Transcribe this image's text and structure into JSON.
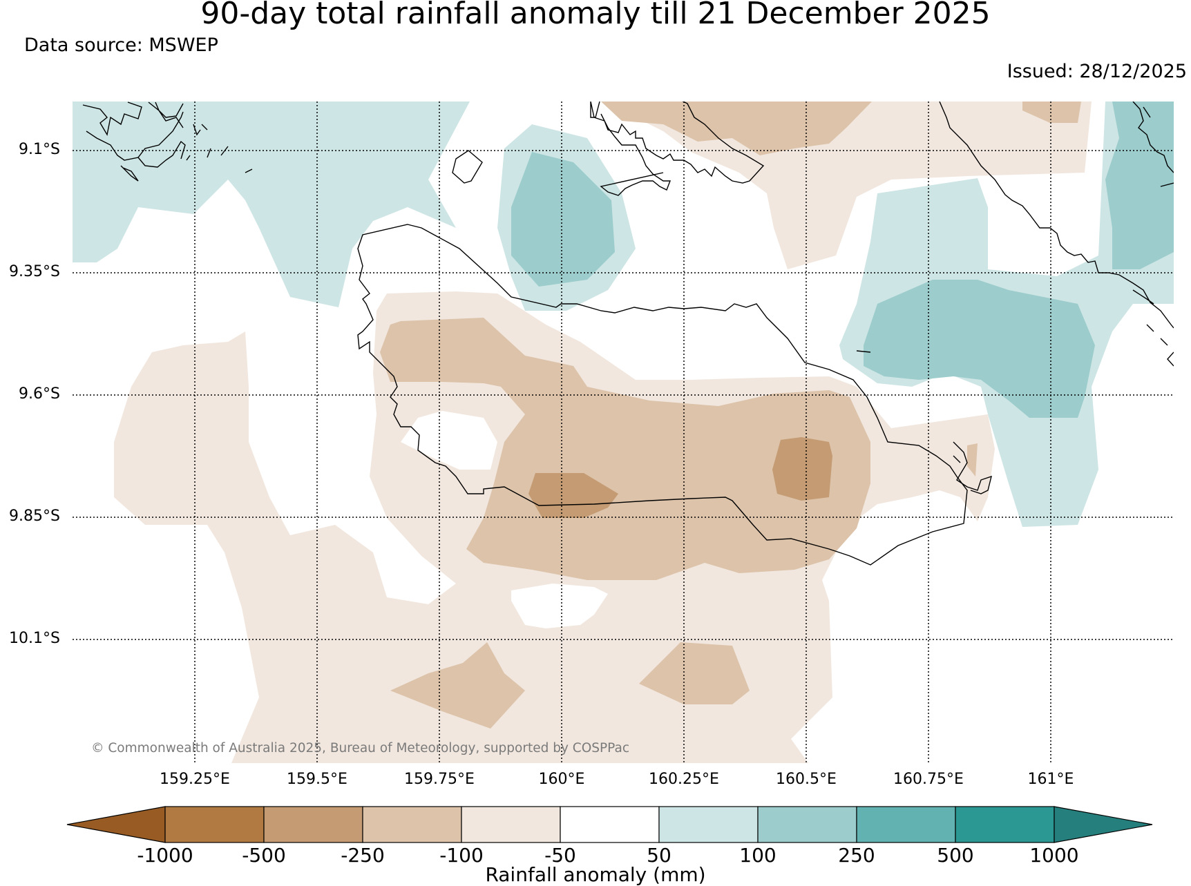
{
  "title": "90-day total rainfall anomaly till 21 December 2025",
  "data_source": "Data source: MSWEP",
  "issued": "Issued: 28/12/2025",
  "copyright": "© Commonwealth of Australia 2025, Bureau of Meteorology, supported by COSPPac",
  "map": {
    "lat_labels": [
      "9.1°S",
      "9.35°S",
      "9.6°S",
      "9.85°S",
      "10.1°S"
    ],
    "lon_labels": [
      "159.25°E",
      "159.5°E",
      "159.75°E",
      "160°E",
      "160.25°E",
      "160.5°E",
      "160.75°E",
      "161°E"
    ]
  },
  "colorbar": {
    "label": "Rainfall anomaly (mm)",
    "ticks": [
      "-1000",
      "-500",
      "-250",
      "-100",
      "-50",
      "50",
      "100",
      "250",
      "500",
      "1000"
    ],
    "colors": [
      "#975b23",
      "#b07a42",
      "#c49b72",
      "#dcc3aa",
      "#f1e7de",
      "#ffffff",
      "#cde5e4",
      "#9ccccc",
      "#62b2b1",
      "#2c9893",
      "#257f7c"
    ]
  },
  "legend": {
    "very_dry": "#c49b72",
    "dry": "#dcc3aa",
    "slightly_dry": "#f1e7de",
    "slightly_wet": "#cde5e4",
    "wet": "#9ccccc"
  }
}
